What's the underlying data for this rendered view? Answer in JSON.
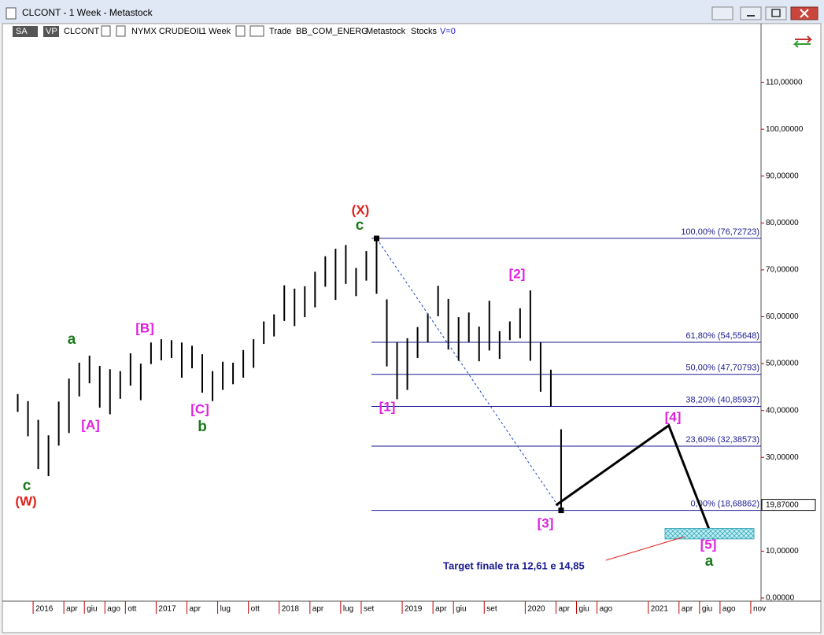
{
  "window": {
    "title": "CLCONT - 1 Week - Metastock",
    "toolbar": [
      "SA",
      "VP",
      "CLCONT",
      "NYMX CRUDEOIL",
      "1 Week",
      "Trade",
      "BB_COM_ENERG",
      "Metastock",
      "Stocks",
      "V=0"
    ]
  },
  "chart_data": {
    "type": "ohlc",
    "x": [
      "2015-11",
      "2015-12",
      "2016-01",
      "2016-02",
      "2016-03",
      "2016-04",
      "2016-05",
      "2016-06",
      "2016-07",
      "2016-08",
      "2016-09",
      "2016-10",
      "2016-11",
      "2016-12",
      "2017-01",
      "2017-02",
      "2017-03",
      "2017-04",
      "2017-05",
      "2017-06",
      "2017-07",
      "2017-08",
      "2017-09",
      "2017-10",
      "2017-11",
      "2017-12",
      "2018-01",
      "2018-02",
      "2018-03",
      "2018-04",
      "2018-05",
      "2018-06",
      "2018-07",
      "2018-08",
      "2018-09",
      "2018-10",
      "2018-11",
      "2018-12",
      "2019-01",
      "2019-02",
      "2019-03",
      "2019-04",
      "2019-05",
      "2019-06",
      "2019-07",
      "2019-08",
      "2019-09",
      "2019-10",
      "2019-11",
      "2019-12",
      "2020-01",
      "2020-02",
      "2020-03",
      "2020-04"
    ],
    "high": [
      43.5,
      42,
      38,
      34.7,
      41.9,
      46.8,
      50.2,
      51.7,
      49.5,
      48.8,
      48.4,
      52.2,
      50,
      54.5,
      55.2,
      55,
      54.5,
      53.8,
      52,
      48.4,
      50.4,
      50.2,
      52.9,
      55.2,
      59,
      60.5,
      66.7,
      66,
      66.5,
      69.6,
      72.9,
      74.5,
      75.3,
      70.4,
      74,
      76.7,
      63.7,
      54.6,
      55.4,
      57.8,
      60.7,
      66.6,
      63.8,
      59.9,
      60.9,
      57.9,
      63.4,
      56.9,
      59,
      61.8,
      65.6,
      54.5,
      48.7,
      36
    ],
    "low": [
      39.7,
      34.5,
      27.5,
      26,
      32.5,
      35.2,
      43,
      45.8,
      40.6,
      39.2,
      42.5,
      45.3,
      42.2,
      49.9,
      50.7,
      51.2,
      47,
      49,
      43.8,
      42,
      44.4,
      45.6,
      47,
      49.1,
      54.2,
      55.8,
      59.1,
      58,
      59.9,
      62,
      66.4,
      63.6,
      67,
      64.4,
      67.7,
      64.9,
      49.4,
      42.4,
      44.4,
      51.2,
      54.5,
      60.1,
      53,
      50.6,
      54.6,
      50.5,
      52.8,
      51,
      55,
      55.4,
      50.6,
      44,
      40.9,
      18.7
    ],
    "color": "#000000",
    "xlim": [
      "2015-10",
      "2021-12"
    ],
    "ylim": [
      0,
      119
    ],
    "xticks": [
      {
        "value": "2016-01",
        "label": "2016"
      },
      {
        "value": "2016-04",
        "label": "apr"
      },
      {
        "value": "2016-06",
        "label": "giu"
      },
      {
        "value": "2016-08",
        "label": "ago"
      },
      {
        "value": "2016-10",
        "label": "ott"
      },
      {
        "value": "2017-01",
        "label": "2017"
      },
      {
        "value": "2017-04",
        "label": "apr"
      },
      {
        "value": "2017-07",
        "label": "lug"
      },
      {
        "value": "2017-10",
        "label": "ott"
      },
      {
        "value": "2018-01",
        "label": "2018"
      },
      {
        "value": "2018-04",
        "label": "apr"
      },
      {
        "value": "2018-07",
        "label": "lug"
      },
      {
        "value": "2018-09",
        "label": "set"
      },
      {
        "value": "2019-01",
        "label": "2019"
      },
      {
        "value": "2019-04",
        "label": "apr"
      },
      {
        "value": "2019-06",
        "label": "giu"
      },
      {
        "value": "2019-09",
        "label": "set"
      },
      {
        "value": "2020-01",
        "label": "2020"
      },
      {
        "value": "2020-04",
        "label": "apr"
      },
      {
        "value": "2020-06",
        "label": "giu"
      },
      {
        "value": "2020-08",
        "label": "ago"
      },
      {
        "value": "2021-01",
        "label": "2021"
      },
      {
        "value": "2021-04",
        "label": "apr"
      },
      {
        "value": "2021-06",
        "label": "giu"
      },
      {
        "value": "2021-08",
        "label": "ago"
      },
      {
        "value": "2021-11",
        "label": "nov"
      }
    ],
    "yticks": [
      {
        "value": 0,
        "label": "0,00000"
      },
      {
        "value": 10,
        "label": "10,00000"
      },
      {
        "value": 20,
        "label": "20,00000"
      },
      {
        "value": 30,
        "label": "30,00000"
      },
      {
        "value": 40,
        "label": "40,00000"
      },
      {
        "value": 50,
        "label": "50,00000"
      },
      {
        "value": 60,
        "label": "60,00000"
      },
      {
        "value": 70,
        "label": "70,00000"
      },
      {
        "value": 80,
        "label": "80,00000"
      },
      {
        "value": 90,
        "label": "90,00000"
      },
      {
        "value": 100,
        "label": "100,00000"
      },
      {
        "value": 110,
        "label": "110,00000"
      }
    ],
    "fib_levels": [
      {
        "value": 76.72723,
        "label": "100,00% (76,72723)"
      },
      {
        "value": 54.55648,
        "label": "61,80% (54,55648)"
      },
      {
        "value": 47.70793,
        "label": "50,00% (47,70793)"
      },
      {
        "value": 40.85937,
        "label": "38,20% (40,85937)"
      },
      {
        "value": 32.38573,
        "label": "23,60% (32,38573)"
      },
      {
        "value": 18.68862,
        "label": "0,00% (18,68862)"
      }
    ],
    "fib_start": "2018-10",
    "last_price": {
      "value": 19.87,
      "label": "19,87000"
    },
    "projection": {
      "x": [
        "2020-04",
        "2021-03",
        "2021-07"
      ],
      "values": [
        19.8,
        36.8,
        14.3
      ],
      "color": "#000000"
    },
    "target_range": [
      12.61,
      14.85
    ],
    "target_text": "Target finale tra 12,61 e 14,85",
    "annotations": [
      {
        "text": "(X)",
        "color": "#e0201b"
      },
      {
        "text": "c",
        "color": "#1a7a1a"
      },
      {
        "text": "[2]",
        "color": "#e020e0"
      },
      {
        "text": "[1]",
        "color": "#e020e0"
      },
      {
        "text": "[3]",
        "color": "#e020e0"
      },
      {
        "text": "[4]",
        "color": "#e020e0"
      },
      {
        "text": "[5]",
        "color": "#e020e0"
      },
      {
        "text": "a",
        "color": "#1a7a1a"
      },
      {
        "text": "a",
        "color": "#1a7a1a"
      },
      {
        "text": "[B]",
        "color": "#e020e0"
      },
      {
        "text": "[A]",
        "color": "#e020e0"
      },
      {
        "text": "[C]",
        "color": "#e020e0"
      },
      {
        "text": "b",
        "color": "#1a7a1a"
      },
      {
        "text": "c",
        "color": "#1a7a1a"
      },
      {
        "text": "(W)",
        "color": "#e0201b"
      }
    ]
  }
}
